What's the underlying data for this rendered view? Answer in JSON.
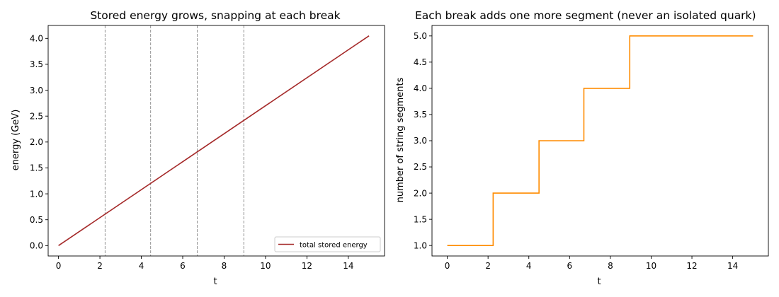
{
  "chart_data": [
    {
      "type": "line",
      "title": "Stored energy grows, snapping at each break",
      "xlabel": "t",
      "ylabel": "energy (GeV)",
      "xlim": [
        -0.5,
        15.75
      ],
      "ylim": [
        -0.2,
        4.25
      ],
      "xticks": [
        0,
        2,
        4,
        6,
        8,
        10,
        12,
        14
      ],
      "yticks": [
        0.0,
        0.5,
        1.0,
        1.5,
        2.0,
        2.5,
        3.0,
        3.5,
        4.0
      ],
      "ytick_format": "fixed1",
      "series": [
        {
          "name": "total stored energy",
          "color": "#a52a2a",
          "x": [
            0,
            15
          ],
          "y": [
            0,
            4.05
          ]
        }
      ],
      "vlines": [
        2.25,
        4.45,
        6.7,
        8.95
      ],
      "vline_color": "#888888",
      "legend": "lower-right",
      "grid": false
    },
    {
      "type": "line",
      "step": true,
      "title": "Each break adds one more segment (never an isolated quark)",
      "xlabel": "t",
      "ylabel": "number of string segments",
      "xlim": [
        -0.75,
        15.75
      ],
      "ylim": [
        0.8,
        5.2
      ],
      "xticks": [
        0,
        2,
        4,
        6,
        8,
        10,
        12,
        14
      ],
      "yticks": [
        1.0,
        1.5,
        2.0,
        2.5,
        3.0,
        3.5,
        4.0,
        4.5,
        5.0
      ],
      "ytick_format": "fixed1",
      "series": [
        {
          "color": "#ff8c00",
          "x": [
            0,
            2.25,
            2.25,
            4.5,
            4.5,
            6.7,
            6.7,
            8.95,
            8.95,
            15
          ],
          "y": [
            1,
            1,
            2,
            2,
            3,
            3,
            4,
            4,
            5,
            5
          ]
        }
      ],
      "grid": false
    }
  ]
}
